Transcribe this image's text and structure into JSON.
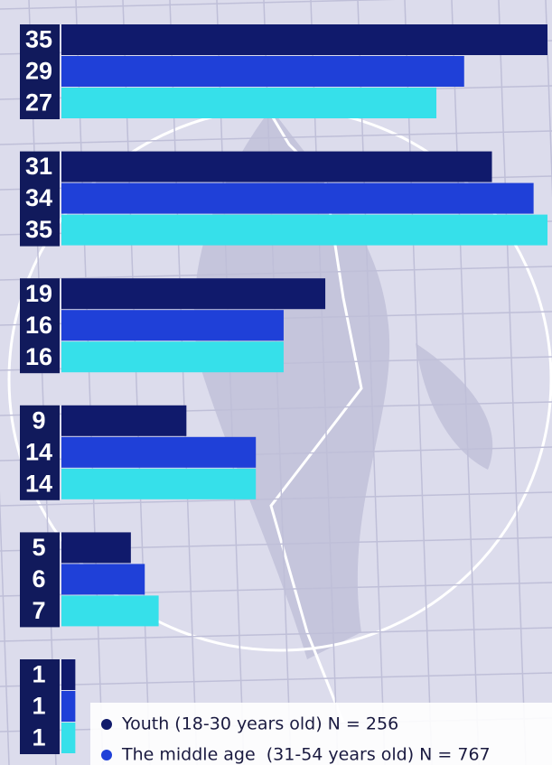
{
  "chart_data": {
    "type": "hbar",
    "series": [
      {
        "name": "Youth (18-30 years old) N = 256",
        "color": "#101a6c",
        "values": [
          35,
          31,
          19,
          9,
          5,
          1
        ]
      },
      {
        "name": "The middle age  (31-54 years old) N = 767",
        "color": "#1f40d8",
        "values": [
          29,
          34,
          16,
          14,
          6,
          1
        ]
      },
      {
        "color": "#36e0ea",
        "values": [
          27,
          35,
          16,
          14,
          7,
          1
        ]
      }
    ]
  }
}
